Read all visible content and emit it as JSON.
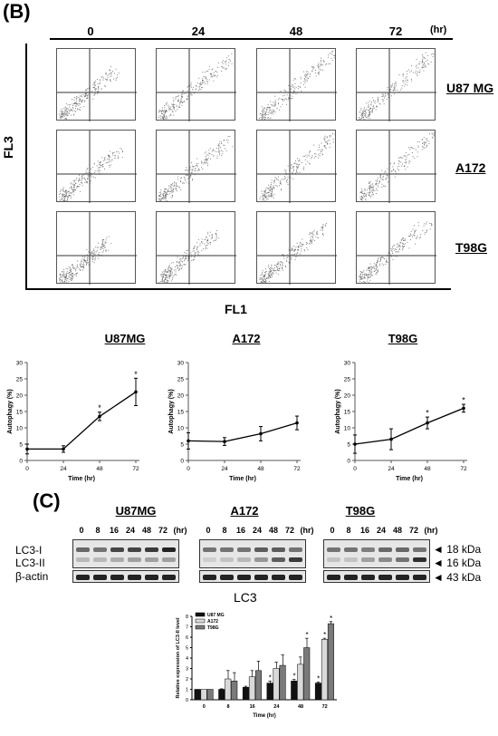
{
  "panel_b": {
    "label": "(B)",
    "timepoints": [
      "0",
      "24",
      "48",
      "72"
    ],
    "time_unit": "(hr)",
    "rows": [
      "U87 MG",
      "A172",
      "T98G"
    ],
    "y_axis": "FL3",
    "x_axis": "FL1"
  },
  "panel_c": {
    "label": "(C)",
    "blots": [
      {
        "title": "U87MG",
        "lanes": [
          "0",
          "8",
          "16",
          "24",
          "48",
          "72"
        ],
        "unit": "(hr)"
      },
      {
        "title": "A172",
        "lanes": [
          "0",
          "8",
          "16",
          "24",
          "48",
          "72"
        ],
        "unit": "(hr)"
      },
      {
        "title": "T98G",
        "lanes": [
          "0",
          "8",
          "16",
          "24",
          "48",
          "72"
        ],
        "unit": "(hr)"
      }
    ],
    "row_labels": [
      "LC3-I",
      "LC3-II",
      "β-actin"
    ],
    "markers": [
      "◄ 18 kDa",
      "◄ 16 kDa",
      "◄ 43 kDa"
    ]
  },
  "chart_data": [
    {
      "type": "line",
      "title": "U87MG",
      "xlabel": "Time (hr)",
      "ylabel": "Autophagy (%)",
      "x": [
        0,
        24,
        48,
        72
      ],
      "xticks": [
        "0",
        "24",
        "48",
        "72"
      ],
      "yticks": [
        "0",
        "5",
        "10",
        "15",
        "20",
        "25",
        "30"
      ],
      "ylim": [
        0,
        30
      ],
      "values": [
        3.5,
        3.5,
        13.5,
        21
      ],
      "errors": [
        1.5,
        1,
        1.3,
        4.2
      ],
      "significant": [
        false,
        false,
        true,
        true
      ],
      "sig_mark": "*"
    },
    {
      "type": "line",
      "title": "A172",
      "xlabel": "Time (hr)",
      "ylabel": "Autophagy (%)",
      "x": [
        0,
        24,
        48,
        72
      ],
      "xticks": [
        "0",
        "24",
        "48",
        "72"
      ],
      "yticks": [
        "0",
        "5",
        "10",
        "15",
        "20",
        "25",
        "30"
      ],
      "ylim": [
        0,
        30
      ],
      "values": [
        6,
        5.8,
        8.2,
        11.5
      ],
      "errors": [
        2.5,
        1.2,
        2.2,
        2.1
      ],
      "significant": [
        false,
        false,
        false,
        false
      ],
      "sig_mark": "*"
    },
    {
      "type": "line",
      "title": "T98G",
      "xlabel": "Time (hr)",
      "ylabel": "Autophagy (%)",
      "x": [
        0,
        24,
        48,
        72
      ],
      "xticks": [
        "0",
        "24",
        "48",
        "72"
      ],
      "yticks": [
        "0",
        "5",
        "10",
        "15",
        "20",
        "25",
        "30"
      ],
      "ylim": [
        0,
        30
      ],
      "values": [
        5,
        6.5,
        11.5,
        16
      ],
      "errors": [
        2.8,
        3.2,
        1.8,
        1.2
      ],
      "significant": [
        false,
        false,
        true,
        true
      ],
      "sig_mark": "*"
    },
    {
      "type": "bar",
      "title": "LC3",
      "xlabel": "Time (hr)",
      "ylabel": "Relative expression of LC3-II level",
      "categories": [
        "0",
        "8",
        "16",
        "24",
        "48",
        "72"
      ],
      "yticks": [
        "0",
        "1",
        "2",
        "3",
        "4",
        "5",
        "6",
        "7",
        "8"
      ],
      "ylim": [
        0,
        8
      ],
      "legend_position": "top-left",
      "series": [
        {
          "name": "U87 MG",
          "color": "#111111",
          "values": [
            1.0,
            1.0,
            1.2,
            1.6,
            1.8,
            1.6
          ],
          "errors": [
            0,
            0.05,
            0.1,
            0.2,
            0.15,
            0.1
          ],
          "significant": [
            false,
            false,
            false,
            true,
            true,
            true
          ]
        },
        {
          "name": "A172",
          "color": "#d9d9d9",
          "values": [
            1.0,
            2.0,
            2.2,
            3.0,
            3.4,
            5.8
          ],
          "errors": [
            0,
            0.8,
            0.6,
            0.6,
            0.7,
            0.1
          ],
          "significant": [
            false,
            false,
            false,
            false,
            false,
            true
          ]
        },
        {
          "name": "T98G",
          "color": "#7a7a7a",
          "values": [
            1.0,
            1.8,
            2.8,
            3.3,
            5.0,
            7.3
          ],
          "errors": [
            0,
            0.8,
            0.9,
            1.0,
            0.9,
            0.2
          ],
          "significant": [
            false,
            false,
            false,
            false,
            true,
            true
          ]
        }
      ],
      "sig_mark": "*"
    }
  ]
}
